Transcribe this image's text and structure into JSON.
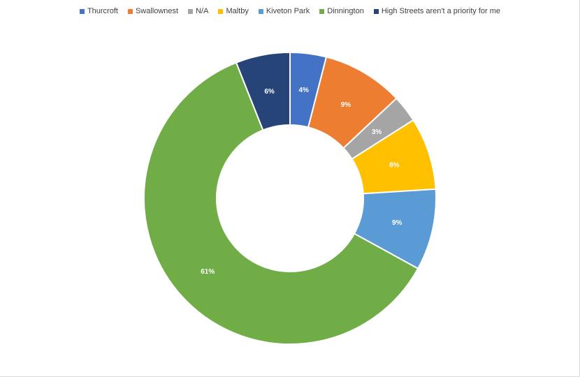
{
  "chart_data": {
    "type": "pie",
    "donut": true,
    "categories": [
      "Thurcroft",
      "Swallownest",
      "N/A",
      "Maltby",
      "Kiveton Park",
      "Dinnington",
      "High Streets aren't a priority for me"
    ],
    "values": [
      4,
      9,
      3,
      8,
      9,
      61,
      6
    ],
    "data_labels": [
      "4%",
      "9%",
      "3%",
      "8%",
      "9%",
      "61%",
      "6%"
    ],
    "colors": [
      "#4472C4",
      "#ED7D31",
      "#A5A5A5",
      "#FFC000",
      "#5B9BD5",
      "#70AD47",
      "#264478"
    ],
    "legend_position": "top"
  }
}
